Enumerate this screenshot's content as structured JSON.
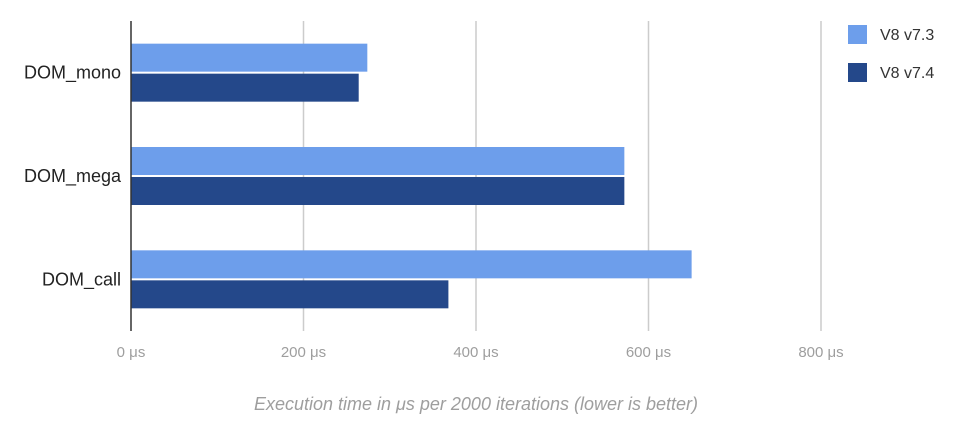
{
  "chart_data": {
    "type": "bar",
    "orientation": "horizontal",
    "categories": [
      "DOM_mono",
      "DOM_mega",
      "DOM_call"
    ],
    "series": [
      {
        "name": "V8 v7.3",
        "color": "#6d9eeb",
        "values": [
          274,
          572,
          650
        ]
      },
      {
        "name": "V8 v7.4",
        "color": "#24488a",
        "values": [
          264,
          572,
          368
        ]
      }
    ],
    "xlabel": "Execution time in μs per 2000 iterations (lower is better)",
    "ylabel": "",
    "xlim": [
      0,
      800
    ],
    "x_ticks": [
      "0 μs",
      "200 μs",
      "400 μs",
      "600 μs",
      "800 μs"
    ],
    "grid": true,
    "legend_position": "top-right"
  }
}
